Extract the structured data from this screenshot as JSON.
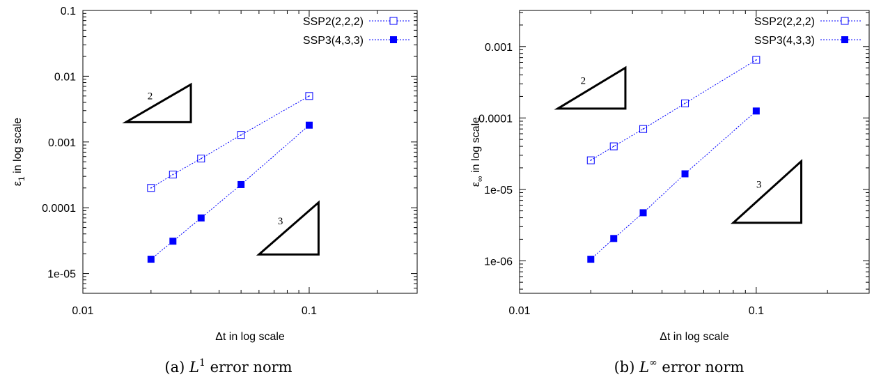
{
  "chart_data": [
    {
      "type": "scatter",
      "xscale": "log",
      "yscale": "log",
      "xlim": [
        0.01,
        0.3
      ],
      "ylim": [
        5e-06,
        0.1
      ],
      "xticks": [
        "0.01",
        "0.1"
      ],
      "yticks": [
        "1e-05",
        "0.0001",
        "0.001",
        "0.01",
        "0.1"
      ],
      "xlabel": "Δt in log scale",
      "ylabel_base": "ε",
      "ylabel_sub": "1",
      "ylabel_rest": " in log scale",
      "legend_position": "top-right",
      "caption_prefix": "(a) ",
      "caption_L": "L",
      "caption_sup": "1",
      "caption_suffix": " error norm",
      "series": [
        {
          "name": "SSP2(2,2,2)",
          "marker": "open-square",
          "color": "#0000ff",
          "x": [
            0.02,
            0.025,
            0.0333,
            0.05,
            0.1
          ],
          "y": [
            0.0002,
            0.00032,
            0.00056,
            0.00128,
            0.005
          ]
        },
        {
          "name": "SSP3(4,3,3)",
          "marker": "filled-square",
          "color": "#0000ff",
          "x": [
            0.02,
            0.025,
            0.0333,
            0.05,
            0.1
          ],
          "y": [
            1.65e-05,
            3.1e-05,
            7e-05,
            0.000225,
            0.0018
          ]
        }
      ],
      "slope_triangles": [
        {
          "label": "2",
          "x_range": [
            0.0155,
            0.03
          ],
          "y_bottom": 0.002,
          "slope": 2
        },
        {
          "label": "3",
          "x_range": [
            0.06,
            0.11
          ],
          "y_bottom": 1.95e-05,
          "slope": 3
        }
      ]
    },
    {
      "type": "scatter",
      "xscale": "log",
      "yscale": "log",
      "xlim": [
        0.01,
        0.3
      ],
      "ylim": [
        3.5e-07,
        0.0032
      ],
      "xticks": [
        "0.01",
        "0.1"
      ],
      "yticks": [
        "1e-06",
        "1e-05",
        "0.0001",
        "0.001"
      ],
      "xlabel": "Δt in log scale",
      "ylabel_base": "ε",
      "ylabel_sub": "∞",
      "ylabel_rest": " in log scale",
      "legend_position": "top-right",
      "caption_prefix": "(b) ",
      "caption_L": "L",
      "caption_sup": "∞",
      "caption_suffix": " error norm",
      "series": [
        {
          "name": "SSP2(2,2,2)",
          "marker": "open-square",
          "color": "#0000ff",
          "x": [
            0.02,
            0.025,
            0.0333,
            0.05,
            0.1
          ],
          "y": [
            2.55e-05,
            4e-05,
            7e-05,
            0.00016,
            0.00065
          ]
        },
        {
          "name": "SSP3(4,3,3)",
          "marker": "filled-square",
          "color": "#0000ff",
          "x": [
            0.02,
            0.025,
            0.0333,
            0.05,
            0.1
          ],
          "y": [
            1.05e-06,
            2.05e-06,
            4.7e-06,
            1.65e-05,
            0.000125
          ]
        }
      ],
      "slope_triangles": [
        {
          "label": "2",
          "x_range": [
            0.0145,
            0.028
          ],
          "y_bottom": 0.000135,
          "slope": 2
        },
        {
          "label": "3",
          "x_range": [
            0.08,
            0.155
          ],
          "y_bottom": 3.4e-06,
          "slope": 3
        }
      ]
    }
  ]
}
